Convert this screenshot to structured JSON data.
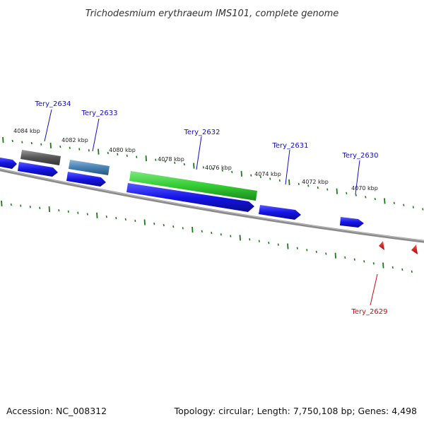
{
  "title": "Trichodesmium erythraeum IMS101, complete genome",
  "footer": {
    "accession": "Accession: NC_008312",
    "summary": "Topology: circular; Length: 7,750,108 bp; Genes: 4,498"
  },
  "kbp_labels": [
    "4084 kbp",
    "4082 kbp",
    "4080 kbp",
    "4078 kbp",
    "4076 kbp",
    "4074 kbp",
    "4072 kbp",
    "4070 kbp"
  ],
  "gene_labels": [
    {
      "text": "Tery_2634",
      "color": "#1010c0"
    },
    {
      "text": "Tery_2633",
      "color": "#1010c0"
    },
    {
      "text": "Tery_2632",
      "color": "#1010c0"
    },
    {
      "text": "Tery_2631",
      "color": "#1010c0"
    },
    {
      "text": "Tery_2630",
      "color": "#1010c0"
    },
    {
      "text": "Tery_2629",
      "color": "#c01010"
    }
  ],
  "colors": {
    "cds_blue": "#1414e6",
    "feature_gray": "#555555",
    "feature_steel": "#4682b4",
    "feature_green": "#33cc33",
    "tick_green": "#1a7a1a",
    "backbone": "#8a8a8a",
    "reverse_red": "#e00000"
  }
}
